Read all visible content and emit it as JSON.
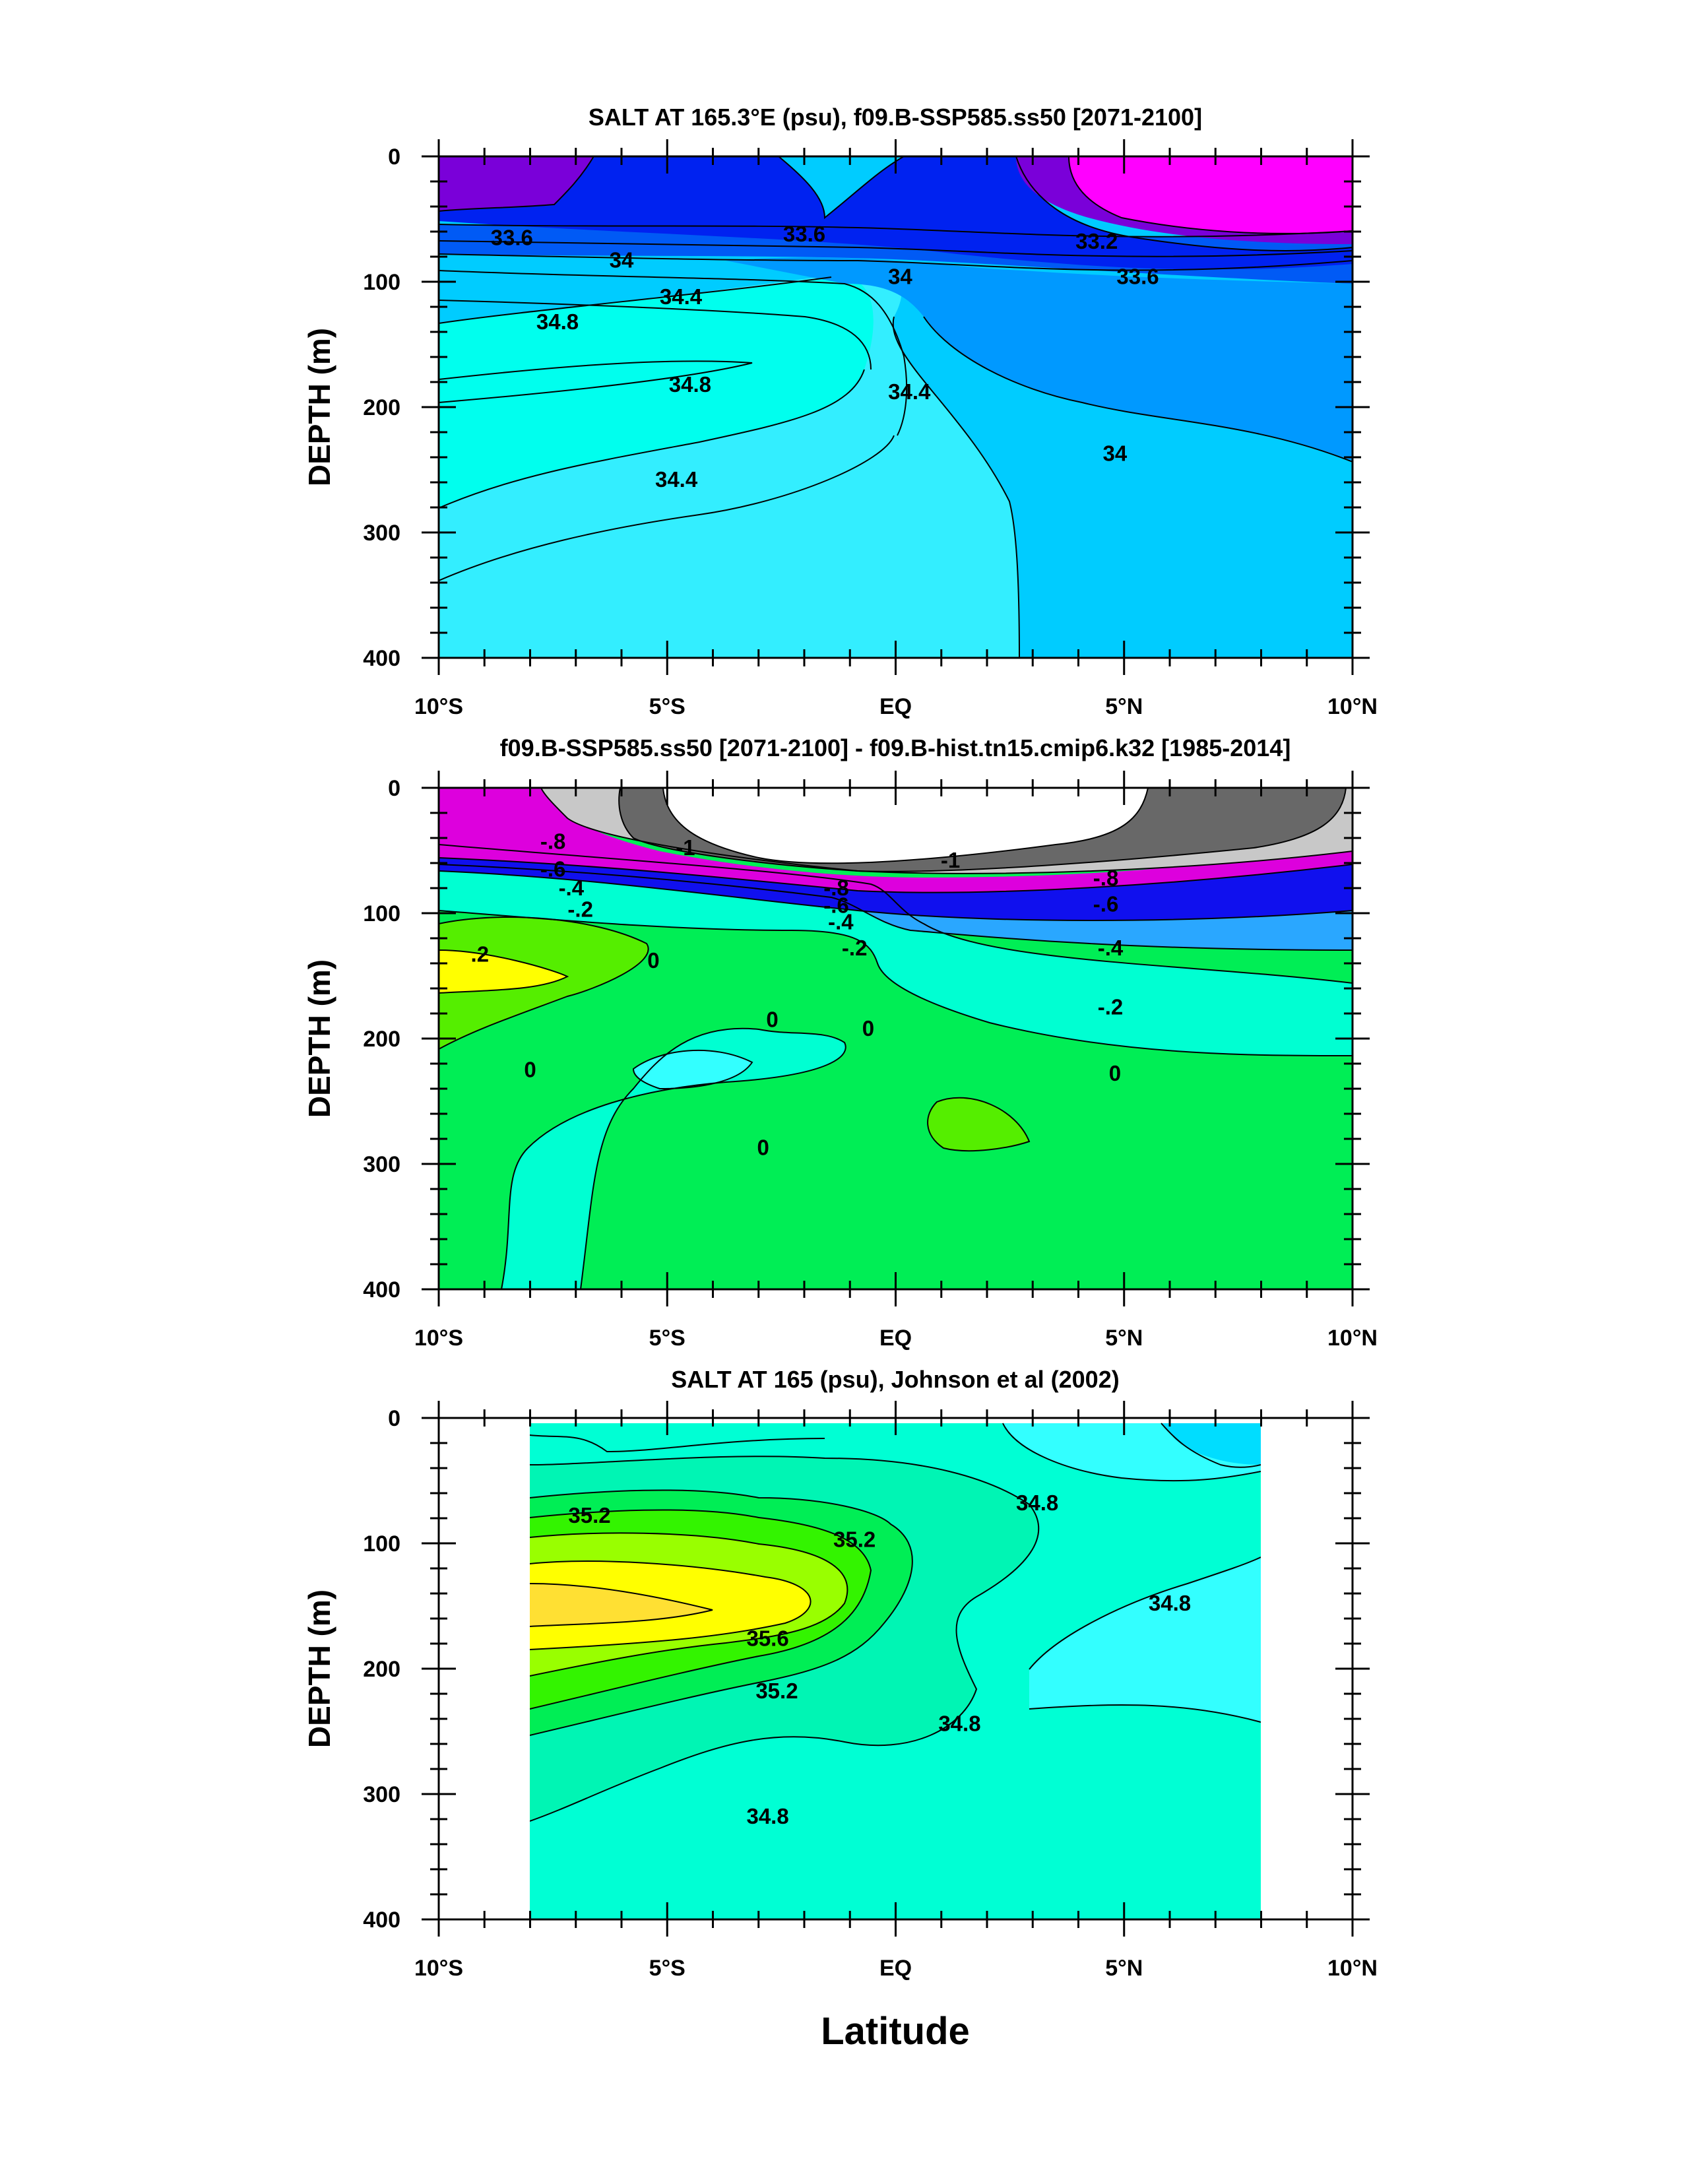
{
  "figure": {
    "xlabel": "Latitude",
    "xlim": [
      -10,
      10
    ],
    "ylim": [
      0,
      400
    ],
    "y_reversed": true,
    "x_tick_labels": [
      "10°S",
      "5°S",
      "EQ",
      "5°N",
      "10°N"
    ],
    "y_tick_labels": [
      "0",
      "100",
      "200",
      "300",
      "400"
    ]
  },
  "chart_data": [
    {
      "type": "heatmap",
      "subtype": "filled-contour",
      "title": "SALT AT 165.3°E (psu), f09.B-SSP585.ss50 [2071-2100]",
      "ylabel": "DEPTH (m)",
      "data_xlim": [
        -10,
        10
      ],
      "contour_labels": [
        {
          "value": "33.6",
          "lat": -8.4,
          "depth": 65
        },
        {
          "value": "33.6",
          "lat": -2.0,
          "depth": 62
        },
        {
          "value": "33.2",
          "lat": 4.4,
          "depth": 68
        },
        {
          "value": "34",
          "lat": -6.0,
          "depth": 83
        },
        {
          "value": "34",
          "lat": 0.1,
          "depth": 96
        },
        {
          "value": "33.6",
          "lat": 5.3,
          "depth": 96
        },
        {
          "value": "34.4",
          "lat": -4.7,
          "depth": 112
        },
        {
          "value": "34.8",
          "lat": -7.4,
          "depth": 132
        },
        {
          "value": "34.8",
          "lat": -4.5,
          "depth": 182
        },
        {
          "value": "34.4",
          "lat": 0.3,
          "depth": 188
        },
        {
          "value": "34",
          "lat": 4.8,
          "depth": 237
        },
        {
          "value": "34.4",
          "lat": -4.8,
          "depth": 258
        }
      ],
      "regions": [
        {
          "value": 32.4,
          "color": "#7a00d9",
          "approx_extent": "surface 0-50 m, 10°S-6.7°S"
        },
        {
          "value": 33.0,
          "color": "#0022f0",
          "approx_extent": "surface 0-55 m, 6.7°S-2.2°S and 0.5°S-2.5°N"
        },
        {
          "value": 33.4,
          "color": "#005af5",
          "approx_extent": "wedge 0-60 m near 1.3°S"
        },
        {
          "value": 32.0,
          "color": "#ff00ff",
          "approx_extent": "surface 0-50 m, 5°N-9.6°N core"
        },
        {
          "value": 33.8,
          "color": "#0099ff",
          "approx_extent": "east of equator below 90 m"
        },
        {
          "value": 34.2,
          "color": "#00ccff",
          "approx_extent": "130-400 m, 2°S-2°N"
        },
        {
          "value": 34.5,
          "color": "#33eeff",
          "approx_extent": "200-400 m, 10°S-2°N"
        },
        {
          "value": 34.9,
          "color": "#00ffee",
          "approx_extent": "130-230 m, 10°S-3°S"
        }
      ]
    },
    {
      "type": "heatmap",
      "subtype": "filled-contour",
      "title": "f09.B-SSP585.ss50 [2071-2100] - f09.B-hist.tn15.cmip6.k32 [1985-2014]",
      "ylabel": "DEPTH (m)",
      "data_xlim": [
        -10,
        10
      ],
      "contour_labels": [
        {
          "value": "-.8",
          "lat": -7.5,
          "depth": 43
        },
        {
          "value": "-1",
          "lat": -4.6,
          "depth": 48
        },
        {
          "value": "-1",
          "lat": 1.2,
          "depth": 58
        },
        {
          "value": "-.8",
          "lat": -1.3,
          "depth": 80
        },
        {
          "value": "-.8",
          "lat": 4.6,
          "depth": 72
        },
        {
          "value": "-.6",
          "lat": -7.5,
          "depth": 65
        },
        {
          "value": "-.6",
          "lat": -1.3,
          "depth": 94
        },
        {
          "value": "-.6",
          "lat": 4.6,
          "depth": 93
        },
        {
          "value": "-.4",
          "lat": -7.1,
          "depth": 80
        },
        {
          "value": "-.4",
          "lat": -1.2,
          "depth": 107
        },
        {
          "value": "-.4",
          "lat": 4.7,
          "depth": 128
        },
        {
          "value": "-.2",
          "lat": -6.9,
          "depth": 97
        },
        {
          "value": "-.2",
          "lat": -0.9,
          "depth": 128
        },
        {
          "value": "-.2",
          "lat": 4.7,
          "depth": 175
        },
        {
          "value": ".2",
          "lat": -9.1,
          "depth": 133
        },
        {
          "value": "0",
          "lat": -5.3,
          "depth": 138
        },
        {
          "value": "0",
          "lat": -2.7,
          "depth": 185
        },
        {
          "value": "0",
          "lat": -0.6,
          "depth": 192
        },
        {
          "value": "0",
          "lat": -8.0,
          "depth": 225
        },
        {
          "value": "0",
          "lat": 4.8,
          "depth": 228
        },
        {
          "value": "0",
          "lat": -2.9,
          "depth": 287
        }
      ],
      "regions": [
        {
          "value": -1.1,
          "color": "#ffffff",
          "approx_extent": "0-60 m, 5°S-5.5°N"
        },
        {
          "value": -0.9,
          "color": "#686868",
          "approx_extent": "band 0-70 m around white core"
        },
        {
          "value": -0.7,
          "color": "#c8c8c8",
          "approx_extent": "band 0-75 m"
        },
        {
          "value": -0.5,
          "color": "#dd00dd",
          "approx_extent": "50-85 m"
        },
        {
          "value": -0.3,
          "color": "#1010ee",
          "approx_extent": "60-110 m"
        },
        {
          "value": -0.1,
          "color": "#2aa7ff",
          "approx_extent": "80-170 m"
        },
        {
          "value": 0.0,
          "color": "#00ffd2",
          "approx_extent": "mid and lower column"
        },
        {
          "value": 0.1,
          "color": "#00ee55",
          "approx_extent": "130-400 m, broad"
        },
        {
          "value": 0.15,
          "color": "#55ee00",
          "approx_extent": "130-200 m west; 250-300 m near 1°N-3°N"
        },
        {
          "value": 0.25,
          "color": "#ffff00",
          "approx_extent": "130-170 m, 10°S-8°S"
        },
        {
          "value": -0.05,
          "color": "#33ffff",
          "approx_extent": "210-250 m near 4.5°S"
        }
      ]
    },
    {
      "type": "heatmap",
      "subtype": "filled-contour",
      "title": "SALT AT 165 (psu), Johnson et al (2002)",
      "ylabel": "DEPTH (m)",
      "data_xlim": [
        -8,
        8
      ],
      "contour_labels": [
        {
          "value": "35.2",
          "lat": -6.7,
          "depth": 78
        },
        {
          "value": "35.2",
          "lat": -0.9,
          "depth": 97
        },
        {
          "value": "34.8",
          "lat": 3.1,
          "depth": 68
        },
        {
          "value": "34.8",
          "lat": 6.0,
          "depth": 148
        },
        {
          "value": "35.6",
          "lat": -2.8,
          "depth": 176
        },
        {
          "value": "35.2",
          "lat": -2.6,
          "depth": 218
        },
        {
          "value": "34.8",
          "lat": 1.4,
          "depth": 244
        },
        {
          "value": "34.8",
          "lat": -2.8,
          "depth": 318
        }
      ],
      "regions": [
        {
          "value": 34.9,
          "color": "#00ffd4",
          "approx_extent": "background 8°S-8°N"
        },
        {
          "value": 35.05,
          "color": "#00f5b4",
          "approx_extent": "60-330 m, 8°S-3°N"
        },
        {
          "value": 35.15,
          "color": "#00ee55",
          "approx_extent": "70-310 m"
        },
        {
          "value": 35.25,
          "color": "#33f400",
          "approx_extent": "80-260 m"
        },
        {
          "value": 35.35,
          "color": "#99ff00",
          "approx_extent": "100-240 m"
        },
        {
          "value": 35.5,
          "color": "#ffff00",
          "approx_extent": "130-220 m"
        },
        {
          "value": 35.7,
          "color": "#ffe033",
          "approx_extent": "150-190 m core near 6.5°S"
        },
        {
          "value": 34.6,
          "color": "#33ffff",
          "approx_extent": "0-50 m and 180-270 m east"
        },
        {
          "value": 34.4,
          "color": "#00ddff",
          "approx_extent": "0-50 m, 6°N-8°N"
        }
      ]
    }
  ]
}
